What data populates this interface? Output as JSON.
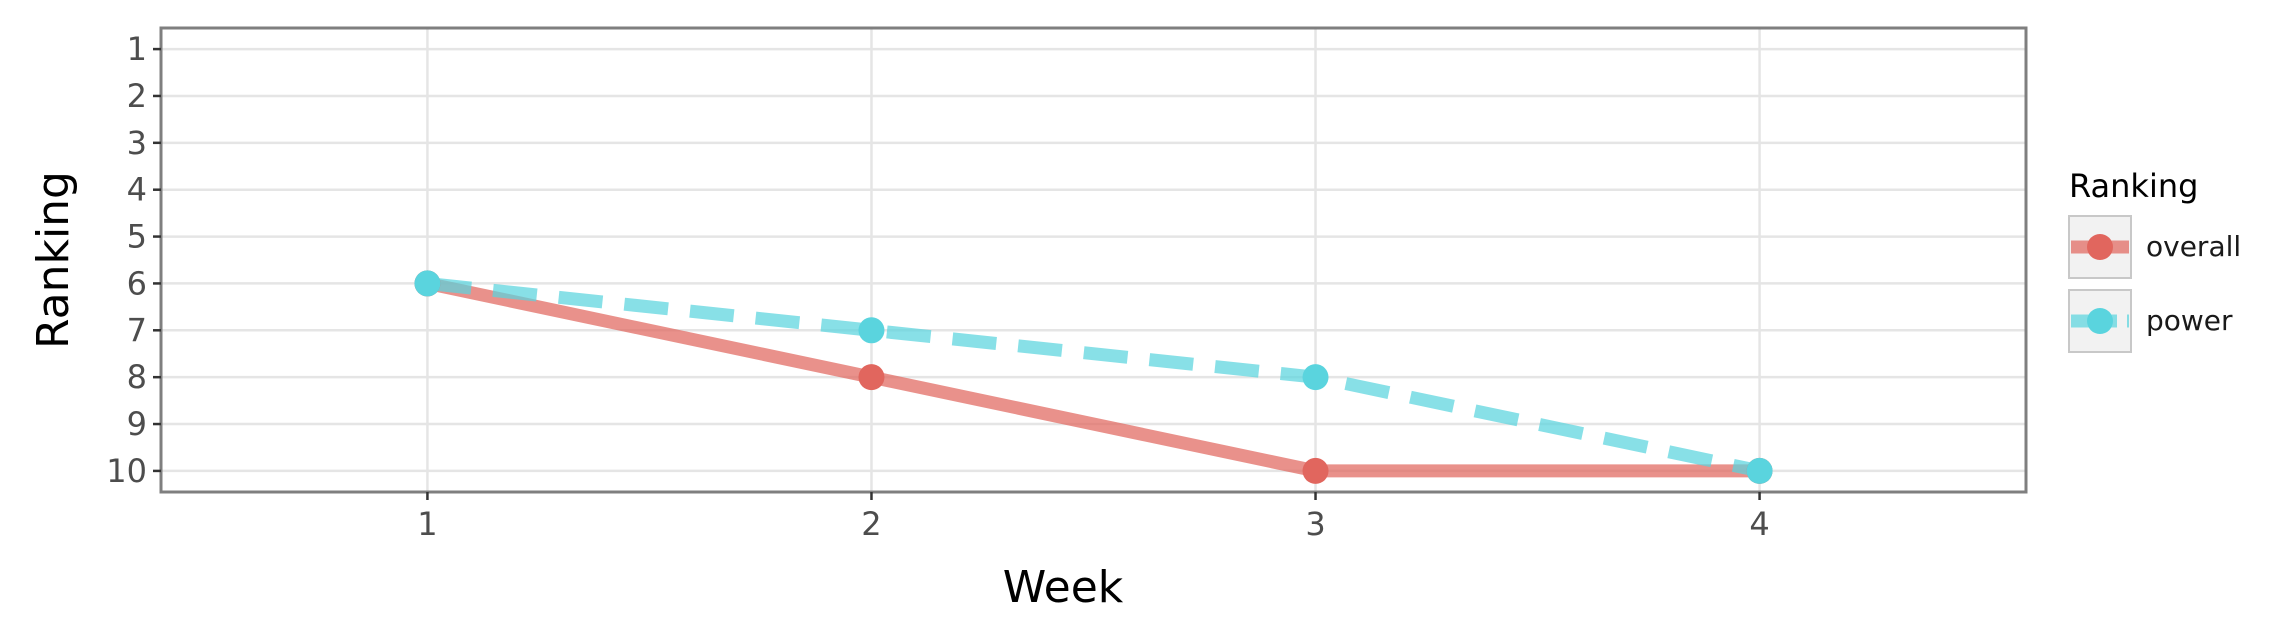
{
  "chart_data": {
    "type": "line",
    "xlabel": "Week",
    "ylabel": "Ranking",
    "x": [
      1,
      2,
      3,
      4
    ],
    "x_ticks": [
      "1",
      "2",
      "3",
      "4"
    ],
    "xlim": [
      0.4,
      4.6
    ],
    "y_ticks": [
      "1",
      "2",
      "3",
      "4",
      "5",
      "6",
      "7",
      "8",
      "9",
      "10"
    ],
    "ylim": [
      10.45,
      0.55
    ],
    "y_reversed": true,
    "grid": true,
    "legend": {
      "title": "Ranking",
      "position": "right"
    },
    "series": [
      {
        "name": "overall",
        "values": [
          6,
          8,
          10,
          10
        ],
        "color": "#e1665e",
        "line_style": "solid"
      },
      {
        "name": "power",
        "values": [
          6,
          7,
          8,
          10
        ],
        "color": "#5ad4de",
        "line_style": "dashed"
      }
    ]
  }
}
